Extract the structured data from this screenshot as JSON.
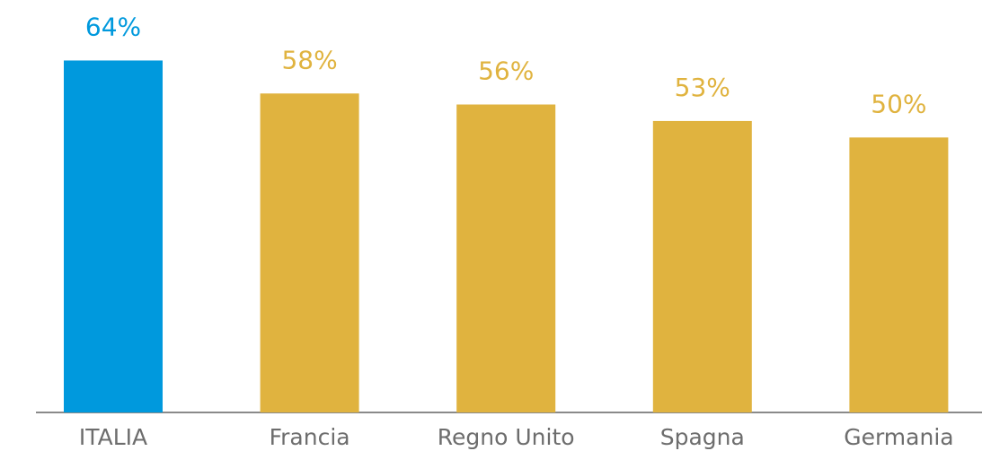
{
  "chart_data": {
    "type": "bar",
    "categories": [
      "ITALIA",
      "Francia",
      "Regno Unito",
      "Spagna",
      "Germania"
    ],
    "values": [
      64,
      58,
      56,
      53,
      50
    ],
    "value_labels": [
      "64%",
      "58%",
      "56%",
      "53%",
      "50%"
    ],
    "colors": [
      "#0099dd",
      "#e0b33f",
      "#e0b33f",
      "#e0b33f",
      "#e0b33f"
    ],
    "ylim": [
      0,
      75
    ]
  }
}
